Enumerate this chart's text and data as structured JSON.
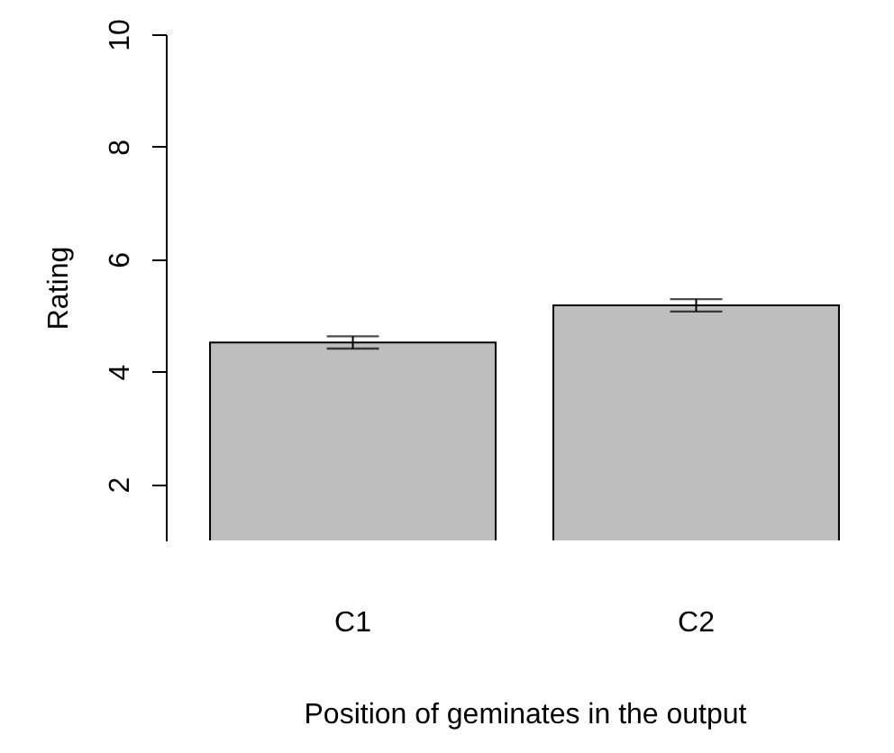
{
  "chart_data": {
    "type": "bar",
    "xlabel": "Position of geminates in the output",
    "ylabel": "Rating",
    "categories": [
      "C1",
      "C2"
    ],
    "values": [
      4.52,
      5.18
    ],
    "errors": [
      0.11,
      0.11
    ],
    "color": "#bebebe",
    "ylim": [
      1,
      10
    ],
    "yticks": [
      2,
      4,
      6,
      8,
      10
    ],
    "grid": false
  }
}
